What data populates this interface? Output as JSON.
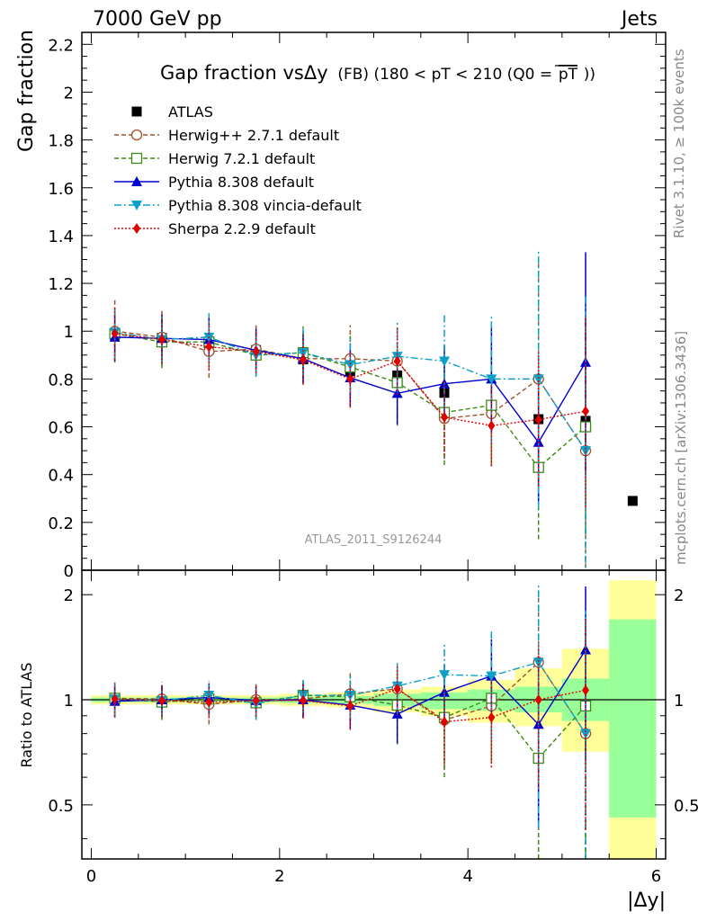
{
  "header": {
    "left": "7000 GeV pp",
    "right": "Jets"
  },
  "side_labels": {
    "rivet": "Rivet 3.1.10, ≥ 100k events",
    "mcplots": "mcplots.cern.ch [arXiv:1306.3436]"
  },
  "watermark": "ATLAS_2011_S9126244",
  "colors": {
    "ATLAS": "#000000",
    "Herwig++ 2.7.1 default": "#a0522d",
    "Herwig 7.2.1 default": "#3c8a14",
    "Pythia 8.308 default": "#0000cc",
    "Pythia 8.308 vincia-default": "#0aa0c8",
    "Sherpa 2.2.9 default": "#e00000",
    "band_inner": "#99ff99",
    "band_outer": "#ffff99"
  },
  "chart_data": [
    {
      "type": "scatter",
      "title_main": "Gap fraction vsΔy",
      "title_sub": "(FB) (180 < pT < 210 (Q0 =",
      "title_pt": "pT",
      "title_close": "))",
      "ylabel": "Gap fraction",
      "ylim": [
        0,
        2.25
      ],
      "xlim": [
        -0.1,
        6.1
      ],
      "yticks": [
        "0",
        "0.2",
        "0.4",
        "0.6",
        "0.8",
        "1",
        "1.2",
        "1.4",
        "1.6",
        "1.8",
        "2",
        "2.2"
      ],
      "legend_position": "top-left",
      "x": [
        0.25,
        0.75,
        1.25,
        1.75,
        2.25,
        2.75,
        3.25,
        3.75,
        4.25,
        4.75,
        5.25,
        5.75
      ],
      "series": [
        {
          "name": "ATLAS",
          "marker": "square",
          "style": "none",
          "values": [
            0.985,
            0.972,
            0.948,
            0.921,
            0.882,
            0.832,
            0.815,
            0.742,
            0.682,
            0.632,
            0.625,
            0.29
          ]
        },
        {
          "name": "Herwig++ 2.7.1 default",
          "marker": "circle-open",
          "style": "dashed",
          "values": [
            1.0,
            0.975,
            0.915,
            0.925,
            0.885,
            0.885,
            0.875,
            0.635,
            0.655,
            0.8,
            0.5
          ],
          "err": [
            0.13,
            0.12,
            0.11,
            0.1,
            0.11,
            0.14,
            0.15,
            0.17,
            0.22,
            0.5,
            0.52
          ]
        },
        {
          "name": "Herwig 7.2.1 default",
          "marker": "square-open",
          "style": "dashed",
          "values": [
            0.99,
            0.955,
            0.955,
            0.9,
            0.91,
            0.85,
            0.785,
            0.66,
            0.69,
            0.43,
            0.6
          ],
          "err": [
            0.12,
            0.11,
            0.1,
            0.09,
            0.11,
            0.13,
            0.18,
            0.22,
            0.24,
            0.3,
            0.45
          ]
        },
        {
          "name": "Pythia 8.308 default",
          "marker": "triangle-up",
          "style": "solid",
          "values": [
            0.975,
            0.97,
            0.965,
            0.92,
            0.885,
            0.805,
            0.74,
            0.78,
            0.8,
            0.535,
            0.87
          ],
          "err": [
            0.1,
            0.1,
            0.09,
            0.09,
            0.1,
            0.12,
            0.13,
            0.16,
            0.22,
            0.26,
            0.46
          ]
        },
        {
          "name": "Pythia 8.308 vincia-default",
          "marker": "triangle-down",
          "style": "dashdot",
          "values": [
            0.995,
            0.965,
            0.975,
            0.9,
            0.91,
            0.86,
            0.895,
            0.875,
            0.8,
            0.8,
            0.5
          ],
          "err": [
            0.11,
            0.1,
            0.1,
            0.09,
            0.1,
            0.12,
            0.15,
            0.2,
            0.27,
            0.54,
            0.65
          ]
        },
        {
          "name": "Sherpa 2.2.9 default",
          "marker": "diamond",
          "style": "dotted",
          "values": [
            0.99,
            0.965,
            0.935,
            0.915,
            0.88,
            0.8,
            0.875,
            0.64,
            0.605,
            0.63,
            0.665
          ],
          "err": [
            0.11,
            0.1,
            0.1,
            0.09,
            0.1,
            0.12,
            0.14,
            0.16,
            0.17,
            0.28,
            0.4
          ]
        }
      ]
    },
    {
      "type": "scatter",
      "ylabel": "Ratio to ATLAS",
      "xlabel": "|Δy|",
      "ylim": [
        0.35,
        2.35
      ],
      "log_y": true,
      "xlim": [
        -0.1,
        6.1
      ],
      "xticks": [
        "0",
        "2",
        "4",
        "6"
      ],
      "yticks": [
        "0.5",
        "1",
        "2"
      ],
      "reference": 1,
      "x": [
        0.25,
        0.75,
        1.25,
        1.75,
        2.25,
        2.75,
        3.25,
        3.75,
        4.25,
        4.75,
        5.25,
        5.75
      ],
      "band_inner": [
        [
          0.985,
          1.015
        ],
        [
          0.985,
          1.015
        ],
        [
          0.985,
          1.015
        ],
        [
          0.985,
          1.015
        ],
        [
          0.98,
          1.02
        ],
        [
          0.975,
          1.025
        ],
        [
          0.96,
          1.04
        ],
        [
          0.94,
          1.05
        ],
        [
          0.93,
          1.07
        ],
        [
          0.92,
          1.09
        ],
        [
          0.87,
          1.15
        ],
        [
          0.46,
          1.7
        ]
      ],
      "band_outer": [
        [
          0.97,
          1.03
        ],
        [
          0.97,
          1.03
        ],
        [
          0.97,
          1.03
        ],
        [
          0.97,
          1.03
        ],
        [
          0.96,
          1.04
        ],
        [
          0.95,
          1.05
        ],
        [
          0.92,
          1.07
        ],
        [
          0.9,
          1.09
        ],
        [
          0.86,
          1.14
        ],
        [
          0.84,
          1.23
        ],
        [
          0.71,
          1.4
        ],
        [
          0.35,
          2.2
        ]
      ],
      "series": [
        {
          "name": "Herwig++ 2.7.1 default",
          "values": [
            1.01,
            1.005,
            0.97,
            1.0,
            1.005,
            1.04,
            1.075,
            0.875,
            0.96,
            1.28,
            0.8
          ],
          "err": [
            0.12,
            0.12,
            0.12,
            0.11,
            0.12,
            0.17,
            0.18,
            0.24,
            0.3,
            0.8,
            0.85
          ]
        },
        {
          "name": "Herwig 7.2.1 default",
          "values": [
            1.01,
            0.985,
            1.005,
            0.98,
            1.03,
            1.02,
            0.965,
            0.89,
            1.01,
            0.68,
            0.96
          ],
          "err": [
            0.11,
            0.11,
            0.1,
            0.1,
            0.12,
            0.15,
            0.22,
            0.29,
            0.34,
            0.48,
            0.7
          ]
        },
        {
          "name": "Pythia 8.308 default",
          "values": [
            0.99,
            1.0,
            1.015,
            0.995,
            1.0,
            0.965,
            0.91,
            1.05,
            1.17,
            0.85,
            1.39
          ],
          "err": [
            0.1,
            0.1,
            0.1,
            0.1,
            0.11,
            0.14,
            0.16,
            0.21,
            0.32,
            0.42,
            0.72
          ]
        },
        {
          "name": "Pythia 8.308 vincia-default",
          "values": [
            1.005,
            0.995,
            1.03,
            0.975,
            1.03,
            1.03,
            1.095,
            1.18,
            1.17,
            1.28,
            0.8
          ],
          "err": [
            0.11,
            0.1,
            0.1,
            0.1,
            0.11,
            0.14,
            0.18,
            0.27,
            0.4,
            0.85,
            1.0
          ]
        },
        {
          "name": "Sherpa 2.2.9 default",
          "values": [
            1.005,
            0.995,
            0.985,
            0.995,
            0.995,
            0.96,
            1.075,
            0.865,
            0.89,
            1.0,
            1.065
          ],
          "err": [
            0.11,
            0.1,
            0.1,
            0.1,
            0.11,
            0.14,
            0.17,
            0.21,
            0.25,
            0.44,
            0.64
          ]
        }
      ]
    }
  ]
}
